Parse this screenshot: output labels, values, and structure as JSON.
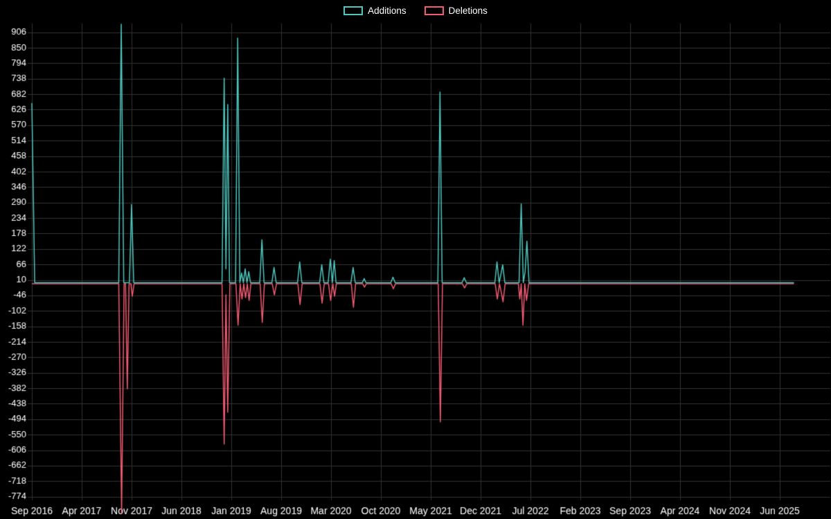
{
  "legend": {
    "additions_label": "Additions",
    "deletions_label": "Deletions"
  },
  "chart_data": {
    "type": "line",
    "grid": true,
    "legend_position": "top-center",
    "x_unit": "months_since_sep_2016",
    "x_range_months": [
      0,
      105
    ],
    "x_tick_labels": [
      "Sep 2016",
      "Apr 2017",
      "Nov 2017",
      "Jun 2018",
      "Jan 2019",
      "Aug 2019",
      "Mar 2020",
      "Oct 2020",
      "May 2021",
      "Dec 2021",
      "Jul 2022",
      "Feb 2023",
      "Sep 2023",
      "Apr 2024",
      "Nov 2024",
      "Jun 2025"
    ],
    "x_tick_months": [
      0,
      7,
      14,
      21,
      28,
      35,
      42,
      49,
      56,
      63,
      70,
      77,
      84,
      91,
      98,
      105
    ],
    "y_ticks": [
      906,
      850,
      794,
      738,
      682,
      626,
      570,
      514,
      458,
      402,
      346,
      290,
      234,
      178,
      122,
      66,
      10,
      -46,
      -102,
      -158,
      -214,
      -270,
      -326,
      -382,
      -438,
      -494,
      -550,
      -606,
      -662,
      -718,
      -774
    ],
    "ylim": [
      -830,
      935
    ],
    "colors": {
      "additions": "#4fc8c0",
      "deletions": "#f25c72",
      "background": "#000000",
      "grid": "#333333",
      "text": "#ffffff"
    },
    "series": [
      {
        "name": "Additions",
        "color_key": "additions",
        "points": [
          [
            0,
            650
          ],
          [
            0.4,
            0
          ],
          [
            12.2,
            0
          ],
          [
            12.55,
            935
          ],
          [
            12.9,
            0
          ],
          [
            13.7,
            0
          ],
          [
            14.0,
            283
          ],
          [
            14.3,
            0
          ],
          [
            26.7,
            0
          ],
          [
            27.0,
            740
          ],
          [
            27.25,
            50
          ],
          [
            27.5,
            645
          ],
          [
            27.75,
            0
          ],
          [
            28.6,
            0
          ],
          [
            28.9,
            885
          ],
          [
            29.2,
            0
          ],
          [
            29.45,
            35
          ],
          [
            29.7,
            0
          ],
          [
            29.95,
            50
          ],
          [
            30.2,
            0
          ],
          [
            30.45,
            40
          ],
          [
            30.7,
            0
          ],
          [
            32.0,
            0
          ],
          [
            32.3,
            155
          ],
          [
            32.6,
            0
          ],
          [
            33.7,
            0
          ],
          [
            34.0,
            55
          ],
          [
            34.3,
            0
          ],
          [
            37.3,
            0
          ],
          [
            37.6,
            75
          ],
          [
            37.9,
            0
          ],
          [
            40.4,
            0
          ],
          [
            40.7,
            65
          ],
          [
            41.0,
            0
          ],
          [
            41.6,
            0
          ],
          [
            41.9,
            85
          ],
          [
            42.2,
            0
          ],
          [
            42.45,
            80
          ],
          [
            42.7,
            0
          ],
          [
            44.8,
            0
          ],
          [
            45.1,
            55
          ],
          [
            45.4,
            0
          ],
          [
            46.4,
            0
          ],
          [
            46.65,
            15
          ],
          [
            46.9,
            0
          ],
          [
            50.4,
            0
          ],
          [
            50.7,
            20
          ],
          [
            51.0,
            0
          ],
          [
            57.0,
            0
          ],
          [
            57.3,
            690
          ],
          [
            57.6,
            0
          ],
          [
            60.4,
            0
          ],
          [
            60.7,
            18
          ],
          [
            61.0,
            0
          ],
          [
            65.0,
            0
          ],
          [
            65.3,
            75
          ],
          [
            65.6,
            0
          ],
          [
            65.85,
            30
          ],
          [
            66.1,
            65
          ],
          [
            66.4,
            0
          ],
          [
            68.4,
            0
          ],
          [
            68.7,
            285
          ],
          [
            69.0,
            0
          ],
          [
            69.25,
            40
          ],
          [
            69.5,
            150
          ],
          [
            69.8,
            0
          ],
          [
            107,
            0
          ]
        ]
      },
      {
        "name": "Deletions",
        "color_key": "deletions",
        "points": [
          [
            0,
            0
          ],
          [
            12.2,
            0
          ],
          [
            12.6,
            -830
          ],
          [
            12.95,
            0
          ],
          [
            13.15,
            0
          ],
          [
            13.4,
            -380
          ],
          [
            13.65,
            0
          ],
          [
            13.9,
            0
          ],
          [
            14.1,
            -45
          ],
          [
            14.35,
            0
          ],
          [
            26.7,
            0
          ],
          [
            27.0,
            -580
          ],
          [
            27.25,
            -40
          ],
          [
            27.5,
            -465
          ],
          [
            27.8,
            0
          ],
          [
            28.65,
            0
          ],
          [
            28.95,
            -150
          ],
          [
            29.25,
            0
          ],
          [
            29.5,
            -55
          ],
          [
            29.75,
            0
          ],
          [
            30.0,
            -50
          ],
          [
            30.25,
            0
          ],
          [
            30.5,
            -60
          ],
          [
            30.75,
            0
          ],
          [
            32.05,
            0
          ],
          [
            32.35,
            -140
          ],
          [
            32.65,
            0
          ],
          [
            33.75,
            0
          ],
          [
            34.05,
            -40
          ],
          [
            34.35,
            0
          ],
          [
            37.35,
            0
          ],
          [
            37.65,
            -75
          ],
          [
            37.95,
            0
          ],
          [
            40.45,
            0
          ],
          [
            40.75,
            -70
          ],
          [
            41.05,
            0
          ],
          [
            41.65,
            0
          ],
          [
            41.95,
            -60
          ],
          [
            42.25,
            0
          ],
          [
            42.5,
            -45
          ],
          [
            42.75,
            0
          ],
          [
            44.85,
            0
          ],
          [
            45.15,
            -85
          ],
          [
            45.45,
            0
          ],
          [
            46.45,
            0
          ],
          [
            46.7,
            -12
          ],
          [
            46.95,
            0
          ],
          [
            50.45,
            0
          ],
          [
            50.75,
            -18
          ],
          [
            51.05,
            0
          ],
          [
            57.05,
            0
          ],
          [
            57.35,
            -500
          ],
          [
            57.65,
            0
          ],
          [
            60.45,
            0
          ],
          [
            60.75,
            -15
          ],
          [
            61.05,
            0
          ],
          [
            65.05,
            0
          ],
          [
            65.35,
            -55
          ],
          [
            65.65,
            0
          ],
          [
            65.9,
            -30
          ],
          [
            66.15,
            -65
          ],
          [
            66.45,
            0
          ],
          [
            68.3,
            0
          ],
          [
            68.5,
            -55
          ],
          [
            68.7,
            0
          ],
          [
            68.95,
            -150
          ],
          [
            69.2,
            0
          ],
          [
            69.45,
            -60
          ],
          [
            69.75,
            0
          ],
          [
            107,
            0
          ]
        ]
      }
    ]
  }
}
